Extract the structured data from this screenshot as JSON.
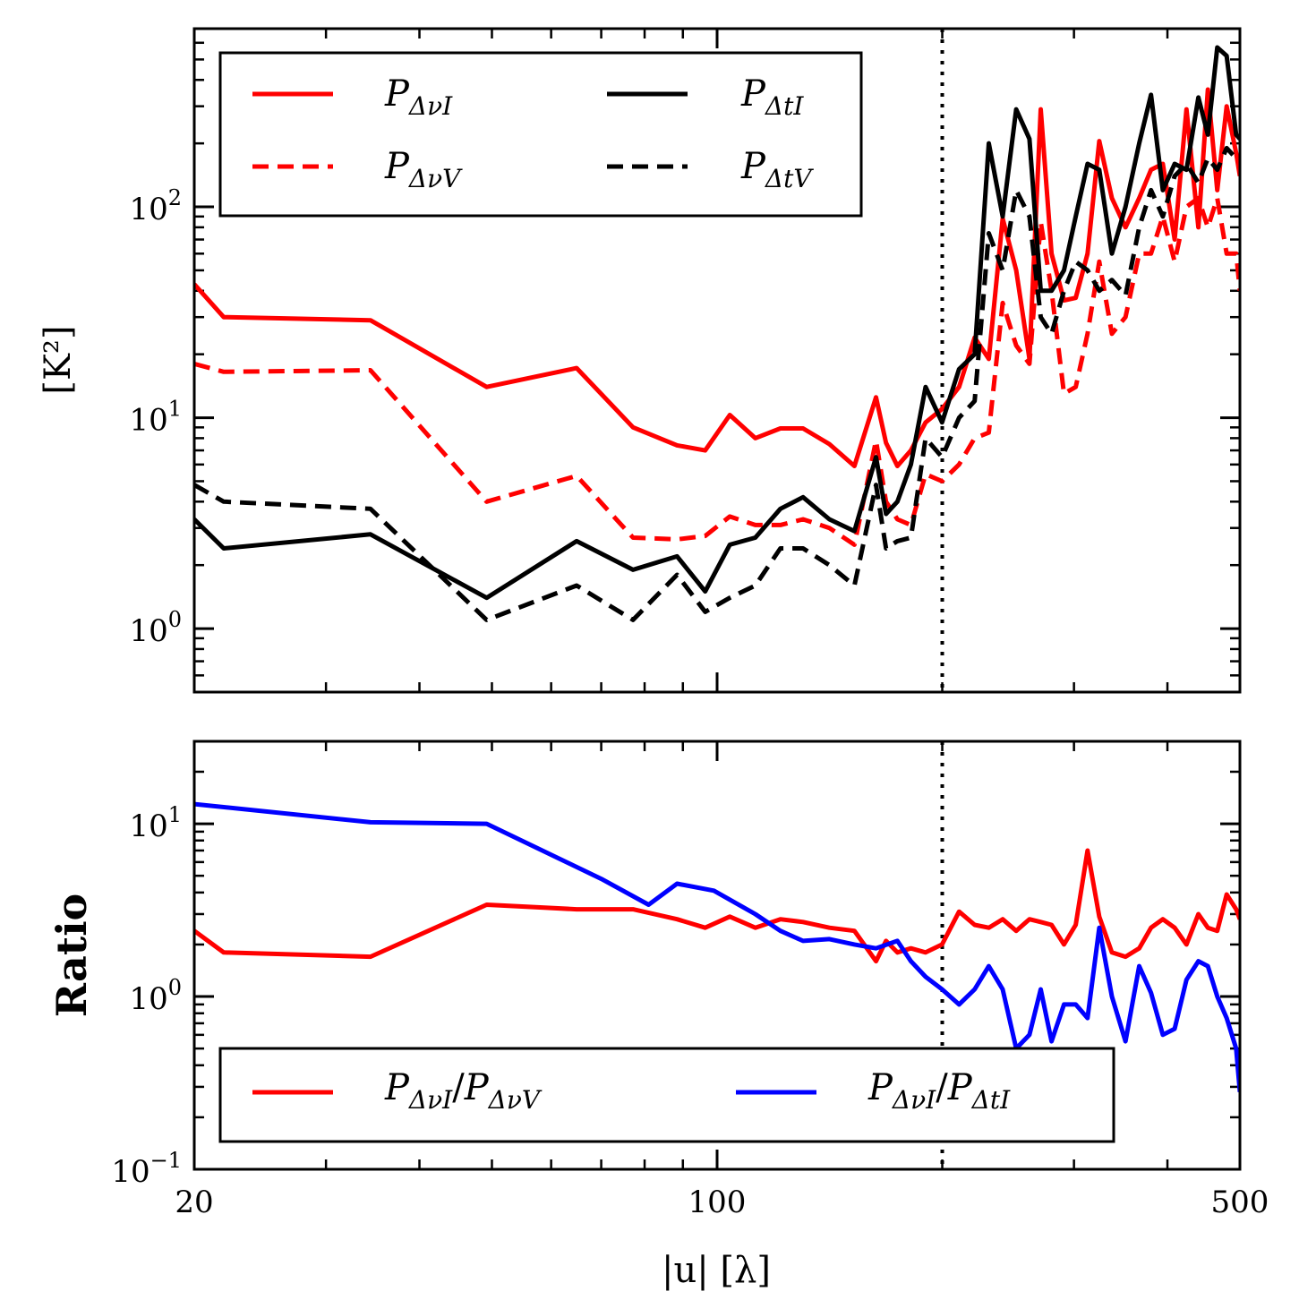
{
  "chart_data": [
    {
      "type": "line",
      "panel": "top",
      "xscale": "log",
      "yscale": "log",
      "xlim": [
        20,
        500
      ],
      "ylim": [
        0.5,
        700
      ],
      "ylabel": "[K²]",
      "xlabel": "",
      "ytick_labels": [
        {
          "value": 1,
          "base": "10",
          "exp": "0"
        },
        {
          "value": 10,
          "base": "10",
          "exp": "1"
        },
        {
          "value": 100,
          "base": "10",
          "exp": "2"
        }
      ],
      "vline_x": 200,
      "legend_position": "upper-left",
      "series": [
        {
          "name": "P_ΔνI",
          "legend": {
            "main": "P",
            "sub": "ΔνI"
          },
          "color": "#ff0000",
          "style": "solid",
          "x": [
            20,
            21.9,
            34.4,
            49.2,
            64.9,
            77.2,
            88.4,
            96.4,
            104,
            112.5,
            121.5,
            130.3,
            141.3,
            152.6,
            163.1,
            168.2,
            174.2,
            181.6,
            190,
            199.9,
            210.6,
            221,
            230.8,
            240.9,
            251.1,
            261.6,
            270.8,
            280,
            290.9,
            301.6,
            312.8,
            324.3,
            337.1,
            351.6,
            366.7,
            380.3,
            394.4,
            409,
            424.2,
            440,
            453,
            466.3,
            480,
            494.2,
            500
          ],
          "y": [
            43,
            30,
            29,
            14,
            17.2,
            9,
            7.4,
            7,
            10.3,
            8,
            8.9,
            8.9,
            7.5,
            5.9,
            12.5,
            7.6,
            5.9,
            7,
            9.5,
            11,
            14,
            24,
            19,
            88,
            50,
            19,
            290,
            60,
            36,
            37,
            60,
            205,
            110,
            80,
            110,
            150,
            160,
            70,
            290,
            80,
            360,
            120,
            300,
            180,
            140
          ]
        },
        {
          "name": "P_ΔνV",
          "legend": {
            "main": "P",
            "sub": "ΔνV"
          },
          "color": "#ff0000",
          "style": "dashed",
          "x": [
            20,
            21.9,
            34.4,
            49.2,
            64.9,
            77.2,
            88.4,
            96.4,
            104,
            112.5,
            121.5,
            130.3,
            141.3,
            152.6,
            163.1,
            168.2,
            174.2,
            181.6,
            190,
            199.9,
            210.6,
            221,
            230.8,
            240.9,
            251.1,
            261.6,
            270.8,
            280,
            290.9,
            301.6,
            312.8,
            324.3,
            337.1,
            351.6,
            366.7,
            380.3,
            394.4,
            409,
            424.2,
            440,
            453,
            466.3,
            480,
            494.2,
            500
          ],
          "y": [
            18,
            16.5,
            16.8,
            4,
            5.3,
            2.7,
            2.65,
            2.75,
            3.4,
            3.1,
            3.1,
            3.3,
            3,
            2.5,
            7.8,
            4,
            3.3,
            3.1,
            5.4,
            5,
            6,
            8,
            8.5,
            35,
            22,
            18,
            85,
            40,
            13,
            14,
            25,
            55,
            25,
            30,
            60,
            60,
            90,
            55,
            100,
            110,
            80,
            110,
            60,
            60,
            40
          ]
        },
        {
          "name": "P_ΔtI",
          "legend": {
            "main": "P",
            "sub": "ΔtI"
          },
          "color": "#000000",
          "style": "solid",
          "x": [
            20,
            21.9,
            34.4,
            49.2,
            64.9,
            77.2,
            88.4,
            96.4,
            104,
            112.5,
            121.5,
            130.3,
            141.3,
            152.6,
            163.1,
            168.2,
            174.2,
            181.6,
            190,
            199.9,
            210.6,
            221,
            230.8,
            240.9,
            251.1,
            261.6,
            270.8,
            280,
            290.9,
            301.6,
            312.8,
            324.3,
            337.1,
            351.6,
            366.7,
            380.3,
            394.4,
            409,
            424.2,
            440,
            453,
            466.3,
            480,
            494.2,
            500
          ],
          "y": [
            3.3,
            2.4,
            2.8,
            1.4,
            2.6,
            1.9,
            2.2,
            1.5,
            2.5,
            2.7,
            3.7,
            4.2,
            3.3,
            2.9,
            6.5,
            3.5,
            4,
            6,
            14,
            9.5,
            17,
            20,
            200,
            90,
            290,
            210,
            40,
            40,
            50,
            90,
            160,
            150,
            60,
            100,
            200,
            340,
            120,
            160,
            150,
            330,
            220,
            570,
            520,
            220,
            210
          ]
        },
        {
          "name": "P_ΔtV",
          "legend": {
            "main": "P",
            "sub": "ΔtV"
          },
          "color": "#000000",
          "style": "dashed",
          "x": [
            20,
            21.9,
            34.4,
            49.2,
            64.9,
            77.2,
            88.4,
            96.4,
            104,
            112.5,
            121.5,
            130.3,
            141.3,
            152.6,
            163.1,
            168.2,
            174.2,
            181.6,
            190,
            199.9,
            210.6,
            221,
            230.8,
            240.9,
            251.1,
            261.6,
            270.8,
            280,
            290.9,
            301.6,
            312.8,
            324.3,
            337.1,
            351.6,
            366.7,
            380.3,
            394.4,
            409,
            424.2,
            440,
            453,
            466.3,
            480,
            494.2,
            500
          ],
          "y": [
            4.8,
            4,
            3.7,
            1.1,
            1.6,
            1.1,
            1.8,
            1.2,
            1.4,
            1.6,
            2.4,
            2.4,
            2,
            1.6,
            4.8,
            2.4,
            2.6,
            2.7,
            8,
            6.5,
            10,
            12,
            75,
            50,
            120,
            90,
            30,
            25,
            40,
            55,
            50,
            40,
            45,
            38,
            80,
            120,
            90,
            140,
            160,
            130,
            170,
            150,
            190,
            170,
            170
          ]
        }
      ]
    },
    {
      "type": "line",
      "panel": "bottom",
      "xscale": "log",
      "yscale": "log",
      "xlim": [
        20,
        500
      ],
      "ylim": [
        0.1,
        30
      ],
      "ylabel": "Ratio",
      "xlabel": "|u| [λ]",
      "xtick_labels": [
        "20",
        "100",
        "500"
      ],
      "ytick_labels": [
        {
          "value": 0.1,
          "base": "10",
          "exp": "−1"
        },
        {
          "value": 1,
          "base": "10",
          "exp": "0"
        },
        {
          "value": 10,
          "base": "10",
          "exp": "1"
        }
      ],
      "vline_x": 200,
      "legend_position": "lower-left",
      "series": [
        {
          "name": "P_ΔνI/P_ΔνV",
          "legend": {
            "main1": "P",
            "sub1": "ΔνI",
            "slash": "/",
            "main2": "P",
            "sub2": "ΔνV"
          },
          "color": "#ff0000",
          "style": "solid",
          "x": [
            20,
            21.9,
            34.4,
            49.2,
            64.9,
            77.2,
            88.4,
            96.4,
            104,
            112.5,
            121.5,
            130.3,
            141.3,
            152.6,
            163.1,
            168.2,
            174.2,
            181.6,
            190,
            199.9,
            210.6,
            221,
            230.8,
            240.9,
            251.1,
            261.6,
            270.8,
            280,
            290.9,
            301.6,
            312.8,
            324.3,
            337.1,
            351.6,
            366.7,
            380.3,
            394.4,
            409,
            424.2,
            440,
            453,
            466.3,
            480,
            494.2,
            500
          ],
          "y": [
            2.4,
            1.8,
            1.7,
            3.4,
            3.2,
            3.2,
            2.8,
            2.5,
            2.9,
            2.5,
            2.8,
            2.7,
            2.5,
            2.4,
            1.6,
            2.1,
            1.8,
            1.9,
            1.8,
            2,
            3.1,
            2.6,
            2.5,
            2.8,
            2.4,
            2.8,
            2.7,
            2.6,
            2,
            2.6,
            7,
            2.9,
            1.8,
            1.7,
            1.9,
            2.5,
            2.8,
            2.5,
            2,
            3,
            2.5,
            2.4,
            3.9,
            3.2,
            2.8
          ]
        },
        {
          "name": "P_ΔνI/P_ΔtI",
          "legend": {
            "main1": "P",
            "sub1": "ΔνI",
            "slash": "/",
            "main2": "P",
            "sub2": "ΔtI"
          },
          "color": "#0000ff",
          "style": "solid",
          "x": [
            20,
            34.4,
            49.2,
            70,
            81,
            88.4,
            99,
            112.5,
            121.5,
            130.3,
            141.3,
            152.6,
            163.1,
            174.2,
            181.6,
            190,
            199.9,
            210.6,
            221,
            230.8,
            240.9,
            251.1,
            261.6,
            270.8,
            280,
            290.9,
            301.6,
            312.8,
            324.3,
            337.1,
            351.6,
            366.7,
            380.3,
            394.4,
            409,
            424.2,
            440,
            453,
            466.3,
            480,
            494.2,
            500
          ],
          "y": [
            13,
            10.2,
            10,
            4.8,
            3.4,
            4.5,
            4.1,
            3,
            2.4,
            2.1,
            2.15,
            2,
            1.9,
            2.1,
            1.6,
            1.3,
            1.1,
            0.9,
            1.1,
            1.5,
            1.1,
            0.5,
            0.6,
            1.1,
            0.55,
            0.9,
            0.9,
            0.75,
            2.5,
            1,
            0.55,
            1.5,
            1.05,
            0.6,
            0.65,
            1.25,
            1.6,
            1.5,
            1,
            0.75,
            0.5,
            0.28
          ]
        }
      ]
    }
  ]
}
